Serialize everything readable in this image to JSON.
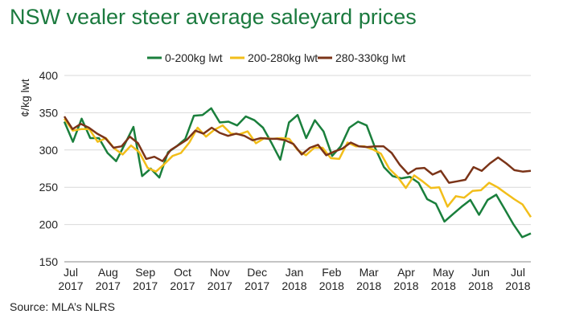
{
  "title": "NSW vealer steer average saleyard prices",
  "source": "Source: MLA’s NLRS",
  "chart_data": {
    "type": "line",
    "title": "NSW vealer steer average saleyard prices",
    "ylabel": "¢/kg lwt",
    "xlabel": "",
    "ylim": [
      150,
      400
    ],
    "yticks": [
      150,
      200,
      250,
      300,
      350,
      400
    ],
    "grid": true,
    "legend_position": "top-center",
    "x_ticks": [
      {
        "month": "Jul",
        "year": "2017"
      },
      {
        "month": "Aug",
        "year": "2017"
      },
      {
        "month": "Sep",
        "year": "2017"
      },
      {
        "month": "Oct",
        "year": "2017"
      },
      {
        "month": "Nov",
        "year": "2017"
      },
      {
        "month": "Dec",
        "year": "2017"
      },
      {
        "month": "Jan",
        "year": "2018"
      },
      {
        "month": "Feb",
        "year": "2018"
      },
      {
        "month": "Mar",
        "year": "2018"
      },
      {
        "month": "Apr",
        "year": "2018"
      },
      {
        "month": "May",
        "year": "2018"
      },
      {
        "month": "Jun",
        "year": "2018"
      },
      {
        "month": "Jul",
        "year": "2018"
      }
    ],
    "series": [
      {
        "name": "0-200kg lwt",
        "color": "#1a7f3c",
        "values": [
          338,
          311,
          342,
          316,
          316,
          296,
          285,
          308,
          331,
          265,
          275,
          263,
          297,
          305,
          315,
          346,
          347,
          356,
          337,
          338,
          333,
          345,
          340,
          330,
          309,
          287,
          337,
          347,
          316,
          340,
          325,
          292,
          305,
          330,
          338,
          333,
          302,
          277,
          265,
          262,
          264,
          256,
          234,
          228,
          204,
          214,
          224,
          233,
          213,
          233,
          240,
          220,
          200,
          183,
          188
        ]
      },
      {
        "name": "200-280kg lwt",
        "color": "#f2be1a",
        "values": [
          342,
          326,
          328,
          328,
          311,
          316,
          302,
          294,
          306,
          297,
          276,
          271,
          281,
          292,
          296,
          310,
          330,
          318,
          327,
          333,
          322,
          321,
          325,
          309,
          316,
          315,
          316,
          315,
          300,
          293,
          303,
          303,
          289,
          288,
          310,
          305,
          305,
          301,
          295,
          275,
          264,
          249,
          266,
          258,
          249,
          250,
          224,
          238,
          236,
          245,
          246,
          256,
          250,
          242,
          234,
          227,
          210
        ]
      },
      {
        "name": "280-330kg lwt",
        "color": "#7b3418",
        "values": [
          345,
          328,
          335,
          330,
          322,
          316,
          303,
          305,
          318,
          309,
          288,
          291,
          285,
          300,
          307,
          314,
          326,
          322,
          330,
          323,
          319,
          322,
          319,
          313,
          316,
          315,
          315,
          313,
          308,
          294,
          303,
          307,
          293,
          298,
          302,
          310,
          305,
          304,
          305,
          305,
          296,
          280,
          268,
          275,
          276,
          267,
          272,
          256,
          258,
          260,
          277,
          272,
          282,
          290,
          282,
          273,
          271,
          272
        ]
      }
    ]
  }
}
